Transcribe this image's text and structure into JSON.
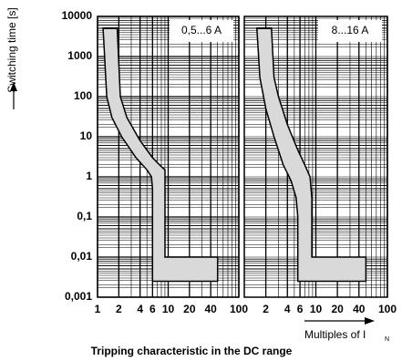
{
  "chart_data": [
    {
      "type": "band",
      "title": "Tripping characteristic in the DC range",
      "ylabel": "Switching time [s]",
      "label": "0,5...6 A",
      "log_x": true,
      "log_y": true,
      "grid": true,
      "color": "#d9d9d9",
      "xlim": [
        1,
        100
      ],
      "ylim": [
        0.001,
        10000
      ],
      "xticks": [
        1,
        2,
        4,
        6,
        10,
        20,
        40,
        100
      ],
      "yticks": [
        10000,
        1000,
        100,
        10,
        1,
        {
          "value": 0.1,
          "label": "0,1"
        },
        {
          "value": 0.01,
          "label": "0,01"
        },
        {
          "value": 0.001,
          "label": "0,001"
        }
      ],
      "outline": {
        "x": [
          1.2,
          1.35,
          1.6,
          2.2,
          3.5,
          5,
          5.8,
          6,
          6,
          50,
          50,
          9,
          9,
          8,
          6,
          4,
          2.6,
          2.1,
          1.9
        ],
        "values": [
          5000,
          100,
          30,
          10,
          3,
          1.5,
          1,
          0.5,
          0.0025,
          0.0025,
          0.01,
          0.01,
          1.5,
          1.8,
          3,
          8,
          30,
          100,
          5000
        ]
      }
    },
    {
      "type": "band",
      "label": "8...16 A",
      "xlabel": "Multiples of  I",
      "xlabel_sub": "N",
      "log_x": true,
      "log_y": true,
      "grid": true,
      "color": "#d9d9d9",
      "xlim": [
        1,
        100
      ],
      "ylim": [
        0.001,
        10000
      ],
      "xticks": [
        2,
        4,
        6,
        10,
        20,
        40,
        100
      ],
      "outline": {
        "x": [
          1.5,
          1.65,
          2,
          2.6,
          3.5,
          4.5,
          5.3,
          5.6,
          5.6,
          50,
          50,
          8.8,
          8.8,
          8.3,
          7,
          5.5,
          4,
          3,
          2.6,
          2.4
        ],
        "values": [
          5000,
          300,
          50,
          10,
          2,
          0.8,
          0.3,
          0.1,
          0.0025,
          0.0025,
          0.01,
          0.01,
          0.3,
          1,
          2,
          5,
          20,
          100,
          300,
          5000
        ]
      }
    }
  ]
}
